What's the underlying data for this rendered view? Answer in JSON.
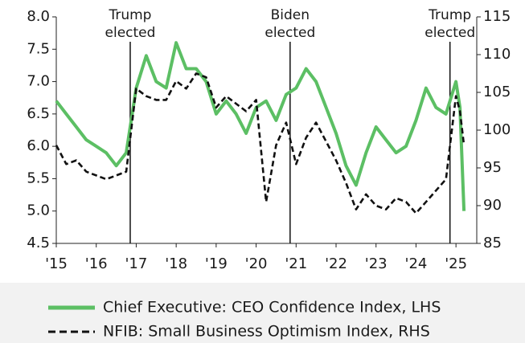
{
  "chart_data": {
    "type": "line",
    "series": [
      {
        "name": "Chief Executive: CEO Confidence Index, LHS",
        "color": "#5cbf64",
        "axis": "y",
        "dash": false,
        "x": [
          2015.0,
          2015.25,
          2015.5,
          2015.75,
          2016.0,
          2016.25,
          2016.5,
          2016.75,
          2017.0,
          2017.25,
          2017.5,
          2017.75,
          2018.0,
          2018.25,
          2018.5,
          2018.75,
          2019.0,
          2019.25,
          2019.5,
          2019.75,
          2020.0,
          2020.25,
          2020.5,
          2020.75,
          2021.0,
          2021.25,
          2021.5,
          2021.75,
          2022.0,
          2022.25,
          2022.5,
          2022.75,
          2023.0,
          2023.25,
          2023.5,
          2023.75,
          2024.0,
          2024.25,
          2024.5,
          2024.75,
          2025.0,
          2025.1,
          2025.2
        ],
        "values": [
          6.7,
          6.5,
          6.3,
          6.1,
          6.0,
          5.9,
          5.7,
          5.9,
          6.9,
          7.4,
          7.0,
          6.9,
          7.6,
          7.2,
          7.2,
          7.0,
          6.5,
          6.7,
          6.5,
          6.2,
          6.6,
          6.7,
          6.4,
          6.8,
          6.9,
          7.2,
          7.0,
          6.6,
          6.2,
          5.7,
          5.4,
          5.9,
          6.3,
          6.1,
          5.9,
          6.0,
          6.4,
          6.9,
          6.6,
          6.5,
          7.0,
          6.6,
          5.0
        ]
      },
      {
        "name": "NFIB: Small Business Optimism Index, RHS",
        "color": "#111111",
        "axis": "y2",
        "dash": true,
        "x": [
          2015.0,
          2015.25,
          2015.5,
          2015.75,
          2016.0,
          2016.25,
          2016.5,
          2016.75,
          2017.0,
          2017.25,
          2017.5,
          2017.75,
          2018.0,
          2018.25,
          2018.5,
          2018.75,
          2019.0,
          2019.25,
          2019.5,
          2019.75,
          2020.0,
          2020.25,
          2020.5,
          2020.75,
          2021.0,
          2021.25,
          2021.5,
          2021.75,
          2022.0,
          2022.25,
          2022.5,
          2022.75,
          2023.0,
          2023.25,
          2023.5,
          2023.75,
          2024.0,
          2024.25,
          2024.5,
          2024.75,
          2025.0,
          2025.1,
          2025.2
        ],
        "values": [
          98,
          95.5,
          96,
          94.5,
          94,
          93.5,
          94,
          94.5,
          105.5,
          104.5,
          104,
          104,
          106.5,
          105.5,
          107.5,
          107,
          103,
          104.5,
          103.5,
          102.5,
          104,
          90.5,
          98,
          101,
          95.5,
          99,
          101,
          98.5,
          96,
          93,
          89.5,
          91.5,
          90,
          89.5,
          91,
          90.5,
          89,
          90.5,
          92,
          93.5,
          104.5,
          102.5,
          98
        ]
      }
    ],
    "xlim": [
      2015,
      2025.52
    ],
    "xticks": [
      {
        "value": 2015,
        "label": "'15"
      },
      {
        "value": 2016,
        "label": "'16"
      },
      {
        "value": 2017,
        "label": "'17"
      },
      {
        "value": 2018,
        "label": "'18"
      },
      {
        "value": 2019,
        "label": "'19"
      },
      {
        "value": 2020,
        "label": "'20"
      },
      {
        "value": 2021,
        "label": "'21"
      },
      {
        "value": 2022,
        "label": "'22"
      },
      {
        "value": 2023,
        "label": "'23"
      },
      {
        "value": 2024,
        "label": "'24"
      },
      {
        "value": 2025,
        "label": "'25"
      }
    ],
    "ylim": [
      4.5,
      8.0
    ],
    "yticks": [
      4.5,
      {
        "value": 5,
        "label": "5.0"
      },
      5.5,
      {
        "value": 6,
        "label": "6.0"
      },
      6.5,
      {
        "value": 7,
        "label": "7.0"
      },
      7.5,
      {
        "value": 8,
        "label": "8.0"
      }
    ],
    "y2lim": [
      85,
      115
    ],
    "y2ticks": [
      85,
      90,
      95,
      100,
      105,
      110,
      115
    ],
    "annotations": [
      {
        "x": 2016.85,
        "lines": [
          "Trump",
          "elected"
        ]
      },
      {
        "x": 2020.85,
        "lines": [
          "Biden",
          "elected"
        ]
      },
      {
        "x": 2024.85,
        "lines": [
          "Trump",
          "elected"
        ]
      }
    ]
  }
}
